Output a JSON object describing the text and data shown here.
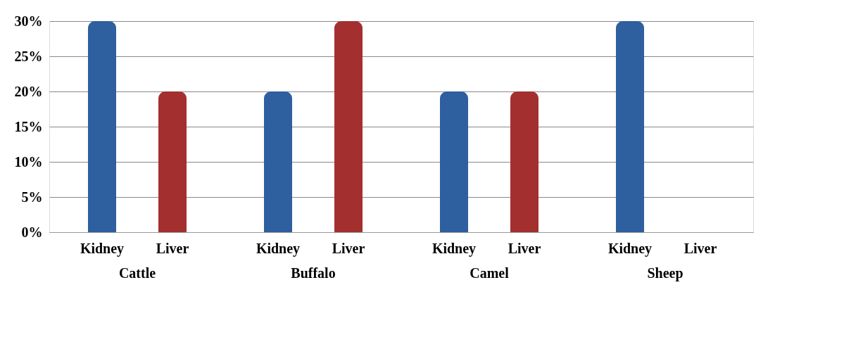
{
  "chart_data": {
    "type": "bar",
    "categories": [
      "Cattle",
      "Buffalo",
      "Camel",
      "Sheep"
    ],
    "series": [
      {
        "name": "Kidney",
        "color": "#2e5f9e",
        "values": [
          30,
          20,
          20,
          30
        ]
      },
      {
        "name": "Liver",
        "color": "#a3302e",
        "values": [
          20,
          30,
          20,
          0
        ]
      }
    ],
    "ylim": [
      0,
      30
    ],
    "yticks": [
      {
        "value": 0,
        "label": "0%"
      },
      {
        "value": 5,
        "label": "5%"
      },
      {
        "value": 10,
        "label": "10%"
      },
      {
        "value": 15,
        "label": "15%"
      },
      {
        "value": 20,
        "label": "20%"
      },
      {
        "value": 25,
        "label": "25%"
      },
      {
        "value": 30,
        "label": "30%"
      }
    ],
    "grid": "y",
    "legend": false
  }
}
